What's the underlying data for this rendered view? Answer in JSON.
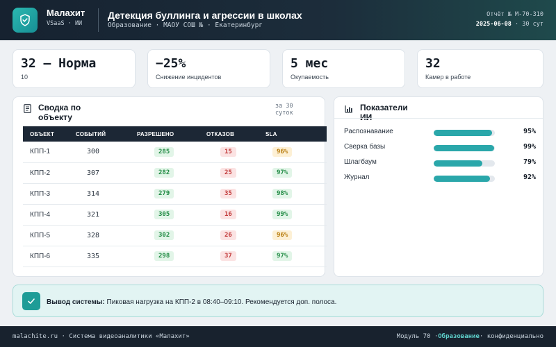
{
  "header": {
    "brand_name": "Малахит",
    "brand_sub": "VSaaS · ИИ",
    "title": "Детекция буллинга и агрессии в школах",
    "subtitle": "Образование · МАОУ СОШ № · Екатеринбург",
    "report_label": "Отчёт № М-70-310",
    "date": "2025-06-08",
    "duration": "· 30 сут"
  },
  "kpis": [
    {
      "value": "32 — Норма",
      "label": "10"
    },
    {
      "value": "−25%",
      "label": "Снижение инцидентов"
    },
    {
      "value": "5 мес",
      "label": "Окупаемость"
    },
    {
      "value": "32",
      "label": "Камер в работе"
    }
  ],
  "summary": {
    "title": "Сводка по объекту",
    "period": "за 30 суток",
    "columns": [
      "ОБЪЕКТ",
      "СОБЫТИЙ",
      "РАЗРЕШЕНО",
      "ОТКАЗОВ",
      "SLA"
    ],
    "rows": [
      {
        "object": "КПП-1",
        "events": "300",
        "allowed": "285",
        "denied": "15",
        "sla": "96%",
        "sla_status": "amber"
      },
      {
        "object": "КПП-2",
        "events": "307",
        "allowed": "282",
        "denied": "25",
        "sla": "97%",
        "sla_status": "green"
      },
      {
        "object": "КПП-3",
        "events": "314",
        "allowed": "279",
        "denied": "35",
        "sla": "98%",
        "sla_status": "green"
      },
      {
        "object": "КПП-4",
        "events": "321",
        "allowed": "305",
        "denied": "16",
        "sla": "99%",
        "sla_status": "green"
      },
      {
        "object": "КПП-5",
        "events": "328",
        "allowed": "302",
        "denied": "26",
        "sla": "96%",
        "sla_status": "amber"
      },
      {
        "object": "КПП-6",
        "events": "335",
        "allowed": "298",
        "denied": "37",
        "sla": "97%",
        "sla_status": "green"
      }
    ]
  },
  "ai_metrics": {
    "title": "Показатели ИИ",
    "items": [
      {
        "label": "Распознавание",
        "value": 95,
        "display": "95%"
      },
      {
        "label": "Сверка базы",
        "value": 99,
        "display": "99%"
      },
      {
        "label": "Шлагбаум",
        "value": 79,
        "display": "79%"
      },
      {
        "label": "Журнал",
        "value": 92,
        "display": "92%"
      }
    ]
  },
  "conclusion": {
    "label": "Вывод системы:",
    "text": "Пиковая нагрузка на КПП-2 в 08:40–09:10. Рекомендуется доп. полоса."
  },
  "footer": {
    "left": "malachite.ru · Система видеоаналитики «Малахит»",
    "module": "Модуль 70 ·",
    "module_accent": "Образование",
    "right": "· конфиденциально"
  },
  "colors": {
    "accent": "#2aa7aa",
    "header_bg": "#162230",
    "ok": "#1f8a42",
    "bad": "#c23a3a",
    "warn": "#b77a09"
  },
  "icons": {
    "logo": "shield-check-icon",
    "summary": "document-icon",
    "metrics": "bar-chart-icon",
    "conclusion": "checkmark-icon"
  }
}
